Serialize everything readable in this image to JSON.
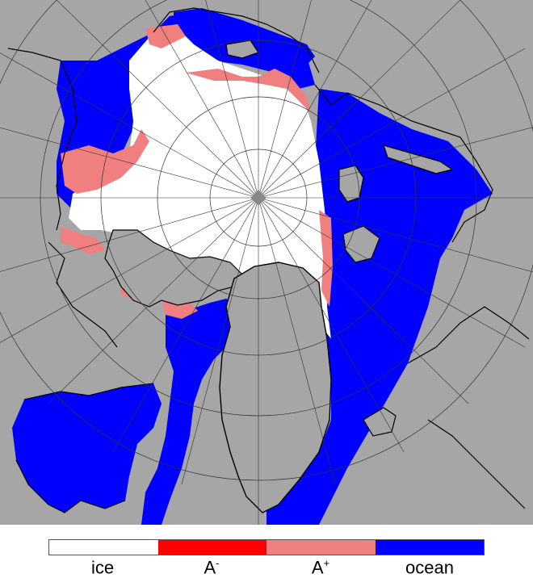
{
  "colors": {
    "land": "#a6a6a6",
    "coast": "#000000",
    "ocean": "#0000ff",
    "ice": "#ffffff",
    "a_minus": "#ff0000",
    "a_plus": "#f08080",
    "pole": "#888888",
    "grid": "#333333"
  },
  "legend": [
    {
      "key": "ice",
      "label": "ice",
      "sup": "",
      "color": "#ffffff"
    },
    {
      "key": "a_minus",
      "label": "A",
      "sup": "-",
      "color": "#ff0000"
    },
    {
      "key": "a_plus",
      "label": "A",
      "sup": "+",
      "color": "#f08080"
    },
    {
      "key": "ocean",
      "label": "ocean",
      "sup": "",
      "color": "#0000ff"
    }
  ]
}
